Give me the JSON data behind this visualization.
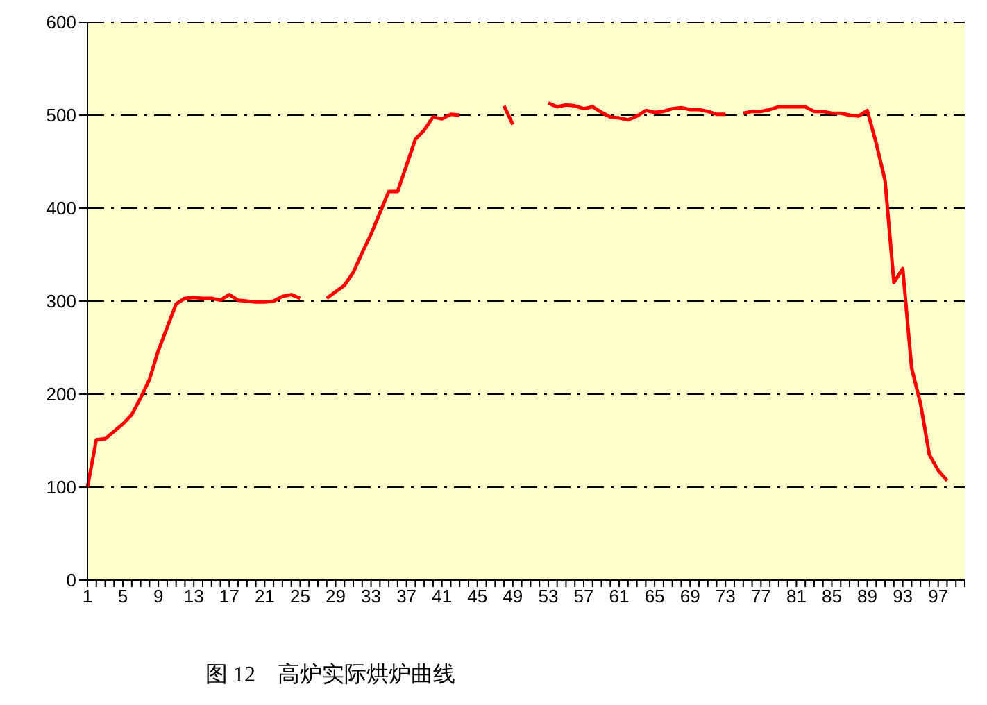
{
  "chart_data": {
    "type": "line",
    "title": "图 12　高炉实际烘炉曲线",
    "categories": [
      "1",
      null,
      null,
      null,
      "5",
      null,
      null,
      null,
      "9",
      null,
      null,
      null,
      "13",
      null,
      null,
      null,
      "17",
      null,
      null,
      null,
      "21",
      null,
      null,
      null,
      "25",
      null,
      null,
      null,
      "29",
      null,
      null,
      null,
      "33",
      null,
      null,
      null,
      "37",
      null,
      null,
      null,
      "41",
      null,
      null,
      null,
      "45",
      null,
      null,
      null,
      "49",
      null,
      null,
      null,
      "53",
      null,
      null,
      null,
      "57",
      null,
      null,
      null,
      "61",
      null,
      null,
      null,
      "65",
      null,
      null,
      null,
      "69",
      null,
      null,
      null,
      "73",
      null,
      null,
      null,
      "77",
      null,
      null,
      null,
      "81",
      null,
      null,
      null,
      "85",
      null,
      null,
      null,
      "89",
      null,
      null,
      null,
      "93",
      null,
      null,
      null,
      "97",
      null,
      null,
      null
    ],
    "series": [
      {
        "color": "#ff0000",
        "values": [
          100,
          151,
          152,
          160,
          168,
          178,
          196,
          216,
          247,
          272,
          297,
          303,
          304,
          303,
          303,
          301,
          307,
          301,
          300,
          299,
          299,
          300,
          305,
          307,
          303,
          null,
          null,
          303,
          310,
          317,
          331,
          352,
          372,
          395,
          418,
          418,
          446,
          474,
          484,
          498,
          496,
          501,
          500,
          null,
          null,
          null,
          null,
          510,
          490,
          null,
          null,
          null,
          513,
          509,
          511,
          510,
          507,
          509,
          503,
          498,
          497,
          495,
          499,
          505,
          503,
          504,
          507,
          508,
          506,
          506,
          504,
          501,
          501,
          null,
          502,
          504,
          504,
          506,
          509,
          509,
          509,
          509,
          504,
          504,
          502,
          502,
          500,
          499,
          505,
          470,
          430,
          320,
          335,
          228,
          190,
          135,
          118,
          107,
          null,
          null
        ]
      }
    ],
    "ylim": [
      0,
      600
    ],
    "yticks": [
      0,
      100,
      200,
      300,
      400,
      500,
      600
    ],
    "grid": "y",
    "marker": "none",
    "line_style": "solid"
  }
}
